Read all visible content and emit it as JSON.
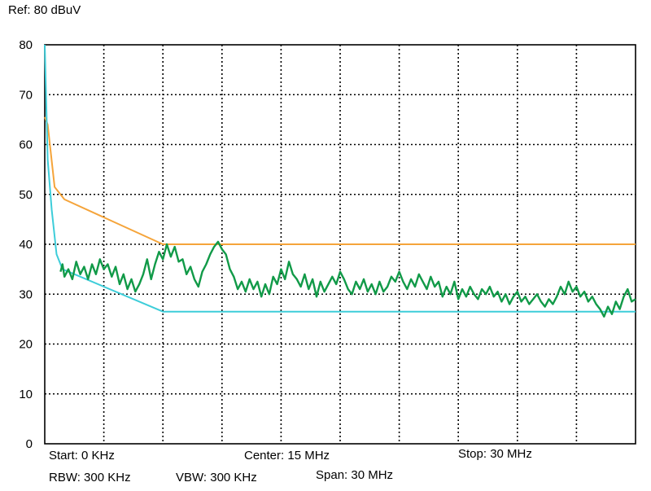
{
  "header": {
    "ref": "Ref: 80 dBuV"
  },
  "footer": {
    "start": "Start: 0 KHz",
    "center": "Center: 15 MHz",
    "stop": "Stop: 30 MHz",
    "rbw": "RBW: 300 KHz",
    "vbw": "VBW: 300 KHz",
    "span": "Span: 30 MHz"
  },
  "chart_data": {
    "type": "line",
    "title": "",
    "xlabel": "",
    "ylabel": "",
    "xlim": [
      0,
      30
    ],
    "ylim": [
      0,
      80
    ],
    "x_unit": "MHz",
    "y_unit": "dBuV",
    "y_ticks": [
      0,
      10,
      20,
      30,
      40,
      50,
      60,
      70,
      80
    ],
    "grid": true,
    "grid_style": "dotted",
    "x_divisions": 10,
    "series": [
      {
        "color": "#f5a43a",
        "points": [
          [
            0,
            65.5
          ],
          [
            0.15,
            64
          ],
          [
            0.5,
            51.5
          ],
          [
            1,
            49
          ],
          [
            6,
            40
          ],
          [
            30,
            40
          ]
        ]
      },
      {
        "color": "#3dcdd9",
        "points": [
          [
            0,
            80
          ],
          [
            0.15,
            57
          ],
          [
            0.35,
            47
          ],
          [
            0.6,
            38
          ],
          [
            0.9,
            35
          ],
          [
            6,
            26.5
          ],
          [
            30,
            26.5
          ]
        ]
      },
      {
        "color": "#119a48",
        "points": [
          [
            0.8,
            34.5
          ],
          [
            0.9,
            36
          ],
          [
            1.0,
            33.5
          ],
          [
            1.2,
            35
          ],
          [
            1.4,
            33
          ],
          [
            1.6,
            36.5
          ],
          [
            1.8,
            34
          ],
          [
            2.0,
            35.5
          ],
          [
            2.2,
            33
          ],
          [
            2.4,
            36
          ],
          [
            2.6,
            34
          ],
          [
            2.8,
            37
          ],
          [
            3.0,
            35
          ],
          [
            3.2,
            36
          ],
          [
            3.4,
            33.5
          ],
          [
            3.6,
            35.5
          ],
          [
            3.8,
            32
          ],
          [
            4.0,
            34
          ],
          [
            4.2,
            31
          ],
          [
            4.4,
            33
          ],
          [
            4.6,
            30.5
          ],
          [
            4.8,
            32
          ],
          [
            5.0,
            34
          ],
          [
            5.2,
            37
          ],
          [
            5.4,
            33
          ],
          [
            5.6,
            36
          ],
          [
            5.8,
            38.5
          ],
          [
            6.0,
            37
          ],
          [
            6.2,
            40
          ],
          [
            6.4,
            37.5
          ],
          [
            6.6,
            39.5
          ],
          [
            6.8,
            36.5
          ],
          [
            7.0,
            37
          ],
          [
            7.2,
            34
          ],
          [
            7.4,
            35.5
          ],
          [
            7.6,
            33
          ],
          [
            7.8,
            31.5
          ],
          [
            8.0,
            34.5
          ],
          [
            8.2,
            36
          ],
          [
            8.4,
            38
          ],
          [
            8.6,
            39.5
          ],
          [
            8.8,
            40.5
          ],
          [
            9.0,
            39
          ],
          [
            9.2,
            38
          ],
          [
            9.4,
            35
          ],
          [
            9.6,
            33.5
          ],
          [
            9.8,
            31
          ],
          [
            10.0,
            32.5
          ],
          [
            10.2,
            30.5
          ],
          [
            10.4,
            33
          ],
          [
            10.6,
            31
          ],
          [
            10.8,
            32.5
          ],
          [
            11.0,
            29.5
          ],
          [
            11.2,
            32
          ],
          [
            11.4,
            30
          ],
          [
            11.6,
            33.5
          ],
          [
            11.8,
            32
          ],
          [
            12.0,
            35
          ],
          [
            12.2,
            33
          ],
          [
            12.4,
            36.5
          ],
          [
            12.6,
            34
          ],
          [
            12.8,
            33
          ],
          [
            13.0,
            31.5
          ],
          [
            13.2,
            34
          ],
          [
            13.4,
            31
          ],
          [
            13.6,
            33
          ],
          [
            13.8,
            29.5
          ],
          [
            14.0,
            32.5
          ],
          [
            14.2,
            30.5
          ],
          [
            14.4,
            32
          ],
          [
            14.6,
            33.5
          ],
          [
            14.8,
            32
          ],
          [
            15.0,
            34.5
          ],
          [
            15.2,
            33
          ],
          [
            15.4,
            31
          ],
          [
            15.6,
            30
          ],
          [
            15.8,
            32.5
          ],
          [
            16.0,
            31
          ],
          [
            16.2,
            33
          ],
          [
            16.4,
            30.5
          ],
          [
            16.6,
            32
          ],
          [
            16.8,
            30
          ],
          [
            17.0,
            32.5
          ],
          [
            17.2,
            30.5
          ],
          [
            17.4,
            31.5
          ],
          [
            17.6,
            33.5
          ],
          [
            17.8,
            32.5
          ],
          [
            18.0,
            34.5
          ],
          [
            18.2,
            32.5
          ],
          [
            18.4,
            31
          ],
          [
            18.6,
            33
          ],
          [
            18.8,
            31.5
          ],
          [
            19.0,
            34
          ],
          [
            19.2,
            32.5
          ],
          [
            19.4,
            31
          ],
          [
            19.6,
            33.5
          ],
          [
            19.8,
            31.5
          ],
          [
            20.0,
            32.5
          ],
          [
            20.2,
            29.5
          ],
          [
            20.4,
            31.5
          ],
          [
            20.6,
            30
          ],
          [
            20.8,
            32.5
          ],
          [
            21.0,
            29
          ],
          [
            21.2,
            31
          ],
          [
            21.4,
            29.5
          ],
          [
            21.6,
            31.5
          ],
          [
            21.8,
            30
          ],
          [
            22.0,
            29
          ],
          [
            22.2,
            31
          ],
          [
            22.4,
            30
          ],
          [
            22.6,
            31.5
          ],
          [
            22.8,
            29.5
          ],
          [
            23.0,
            30.5
          ],
          [
            23.2,
            28.5
          ],
          [
            23.4,
            30
          ],
          [
            23.6,
            28
          ],
          [
            23.8,
            29.5
          ],
          [
            24.0,
            30.5
          ],
          [
            24.2,
            28.5
          ],
          [
            24.4,
            29.5
          ],
          [
            24.6,
            28
          ],
          [
            24.8,
            29
          ],
          [
            25.0,
            30
          ],
          [
            25.2,
            28.5
          ],
          [
            25.4,
            27.5
          ],
          [
            25.6,
            29
          ],
          [
            25.8,
            28
          ],
          [
            26.0,
            29.5
          ],
          [
            26.2,
            31.5
          ],
          [
            26.4,
            30
          ],
          [
            26.6,
            32.5
          ],
          [
            26.8,
            30.5
          ],
          [
            27.0,
            31.5
          ],
          [
            27.2,
            29.5
          ],
          [
            27.4,
            30.5
          ],
          [
            27.6,
            28.5
          ],
          [
            27.8,
            29.5
          ],
          [
            28.0,
            28
          ],
          [
            28.2,
            27
          ],
          [
            28.4,
            25.5
          ],
          [
            28.6,
            27.5
          ],
          [
            28.8,
            26
          ],
          [
            29.0,
            28.5
          ],
          [
            29.2,
            27
          ],
          [
            29.4,
            29.5
          ],
          [
            29.6,
            31
          ],
          [
            29.8,
            28.5
          ],
          [
            30.0,
            29
          ]
        ]
      }
    ]
  }
}
